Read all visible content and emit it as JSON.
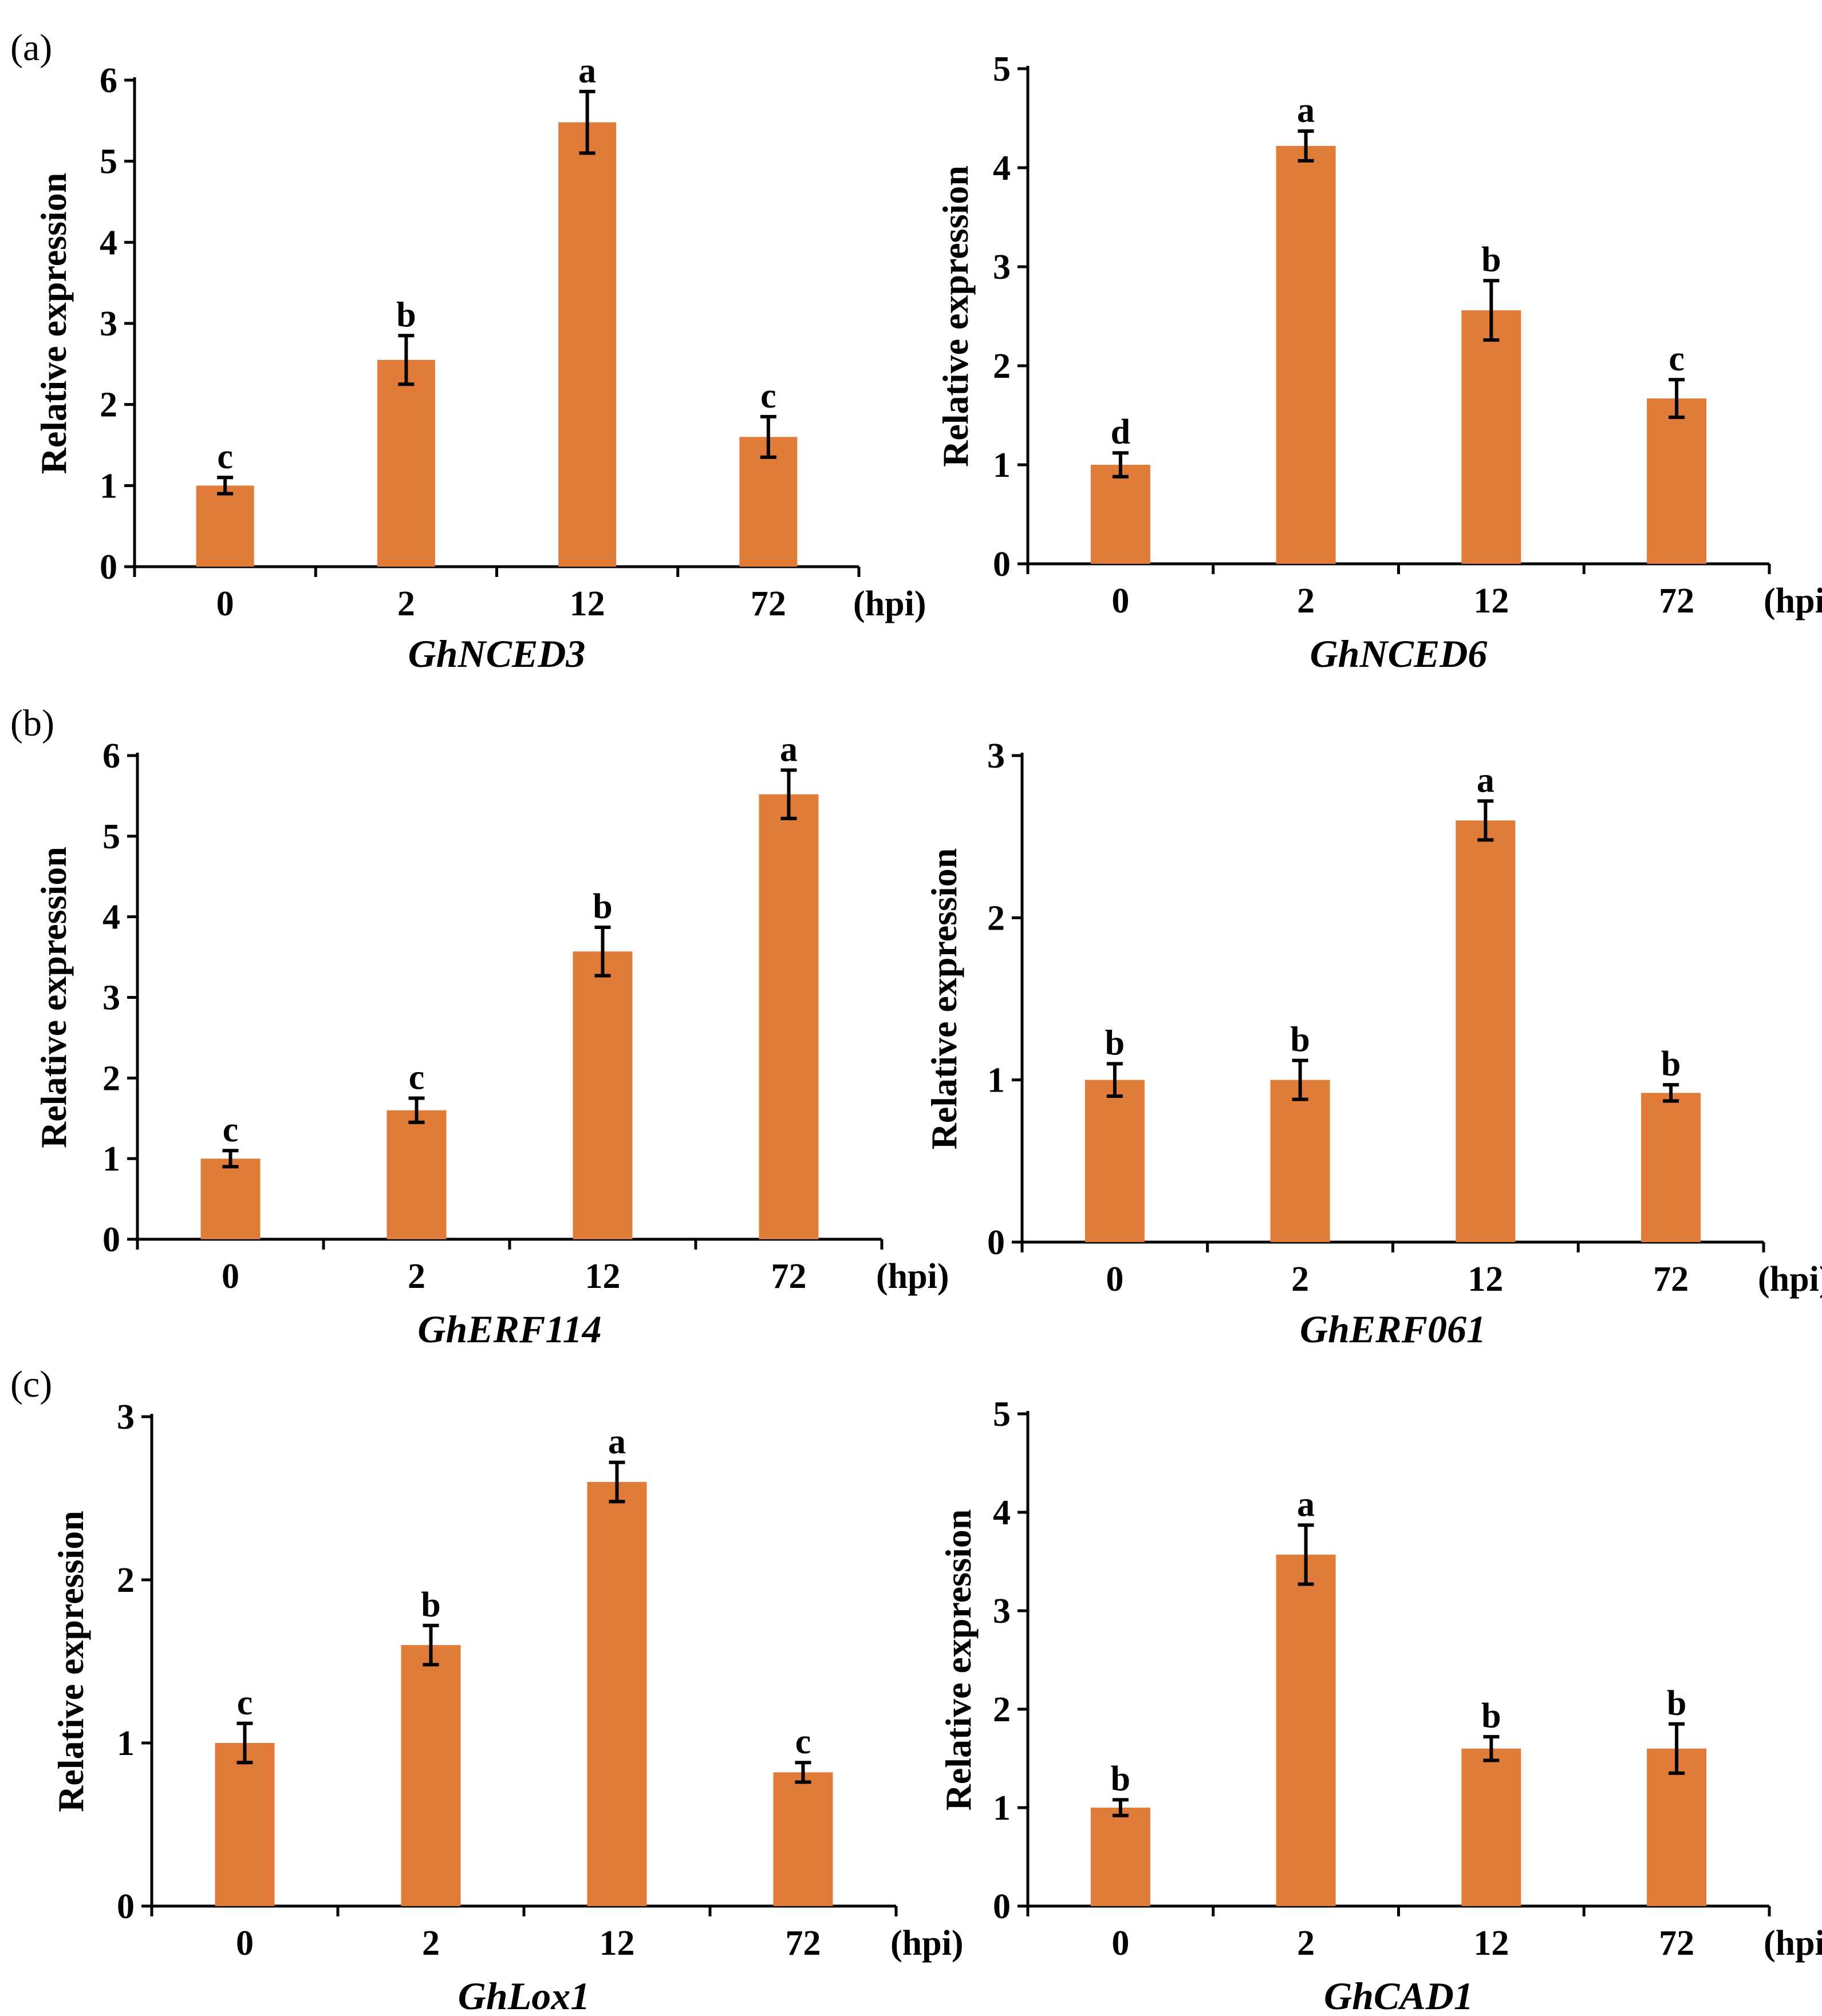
{
  "figure": {
    "unit_label": "(hpi)",
    "y_axis_label": "Relative expression",
    "bar_color": "#E07B39"
  },
  "chart_data": [
    {
      "type": "bar",
      "panel_label": "(a)",
      "title": "GhNCED3",
      "ylabel": "Relative expression",
      "xlabel": "(hpi)",
      "ylim": [
        0,
        6
      ],
      "yticks": [
        0,
        1,
        2,
        3,
        4,
        5,
        6
      ],
      "categories": [
        "0",
        "2",
        "12",
        "72"
      ],
      "values": [
        1.0,
        2.55,
        5.48,
        1.6
      ],
      "errors": [
        0.1,
        0.3,
        0.38,
        0.25
      ],
      "significance": [
        "c",
        "b",
        "a",
        "c"
      ]
    },
    {
      "type": "bar",
      "panel_label": "",
      "title": "GhNCED6",
      "ylabel": "Relative expression",
      "xlabel": "(hpi)",
      "ylim": [
        0,
        5
      ],
      "yticks": [
        0,
        1,
        2,
        3,
        4,
        5
      ],
      "categories": [
        "0",
        "2",
        "12",
        "72"
      ],
      "values": [
        1.0,
        4.22,
        2.56,
        1.67
      ],
      "errors": [
        0.12,
        0.15,
        0.3,
        0.19
      ],
      "significance": [
        "d",
        "a",
        "b",
        "c"
      ]
    },
    {
      "type": "bar",
      "panel_label": "(b)",
      "title": "GhERF114",
      "ylabel": "Relative expression",
      "xlabel": "(hpi)",
      "ylim": [
        0,
        6
      ],
      "yticks": [
        0,
        1,
        2,
        3,
        4,
        5,
        6
      ],
      "categories": [
        "0",
        "2",
        "12",
        "72"
      ],
      "values": [
        1.0,
        1.6,
        3.57,
        5.52
      ],
      "errors": [
        0.1,
        0.15,
        0.3,
        0.3
      ],
      "significance": [
        "c",
        "c",
        "b",
        "a"
      ]
    },
    {
      "type": "bar",
      "panel_label": "",
      "title": "GhERF061",
      "ylabel": "Relative expression",
      "xlabel": "(hpi)",
      "ylim": [
        0,
        3
      ],
      "yticks": [
        0,
        1,
        2,
        3
      ],
      "categories": [
        "0",
        "2",
        "12",
        "72"
      ],
      "values": [
        1.0,
        1.0,
        2.6,
        0.92
      ],
      "errors": [
        0.1,
        0.12,
        0.12,
        0.05
      ],
      "significance": [
        "b",
        "b",
        "a",
        "b"
      ]
    },
    {
      "type": "bar",
      "panel_label": "(c)",
      "title": "GhLox1",
      "ylabel": "Relative expression",
      "xlabel": "(hpi)",
      "ylim": [
        0,
        3
      ],
      "yticks": [
        0,
        1,
        2,
        3
      ],
      "categories": [
        "0",
        "2",
        "12",
        "72"
      ],
      "values": [
        1.0,
        1.6,
        2.6,
        0.82
      ],
      "errors": [
        0.12,
        0.12,
        0.12,
        0.06
      ],
      "significance": [
        "c",
        "b",
        "a",
        "c"
      ]
    },
    {
      "type": "bar",
      "panel_label": "",
      "title": "GhCAD1",
      "ylabel": "Relative expression",
      "xlabel": "(hpi)",
      "ylim": [
        0,
        5
      ],
      "yticks": [
        0,
        1,
        2,
        3,
        4,
        5
      ],
      "categories": [
        "0",
        "2",
        "12",
        "72"
      ],
      "values": [
        1.0,
        3.57,
        1.6,
        1.6
      ],
      "errors": [
        0.08,
        0.3,
        0.12,
        0.25
      ],
      "significance": [
        "b",
        "a",
        "b",
        "b"
      ]
    }
  ]
}
